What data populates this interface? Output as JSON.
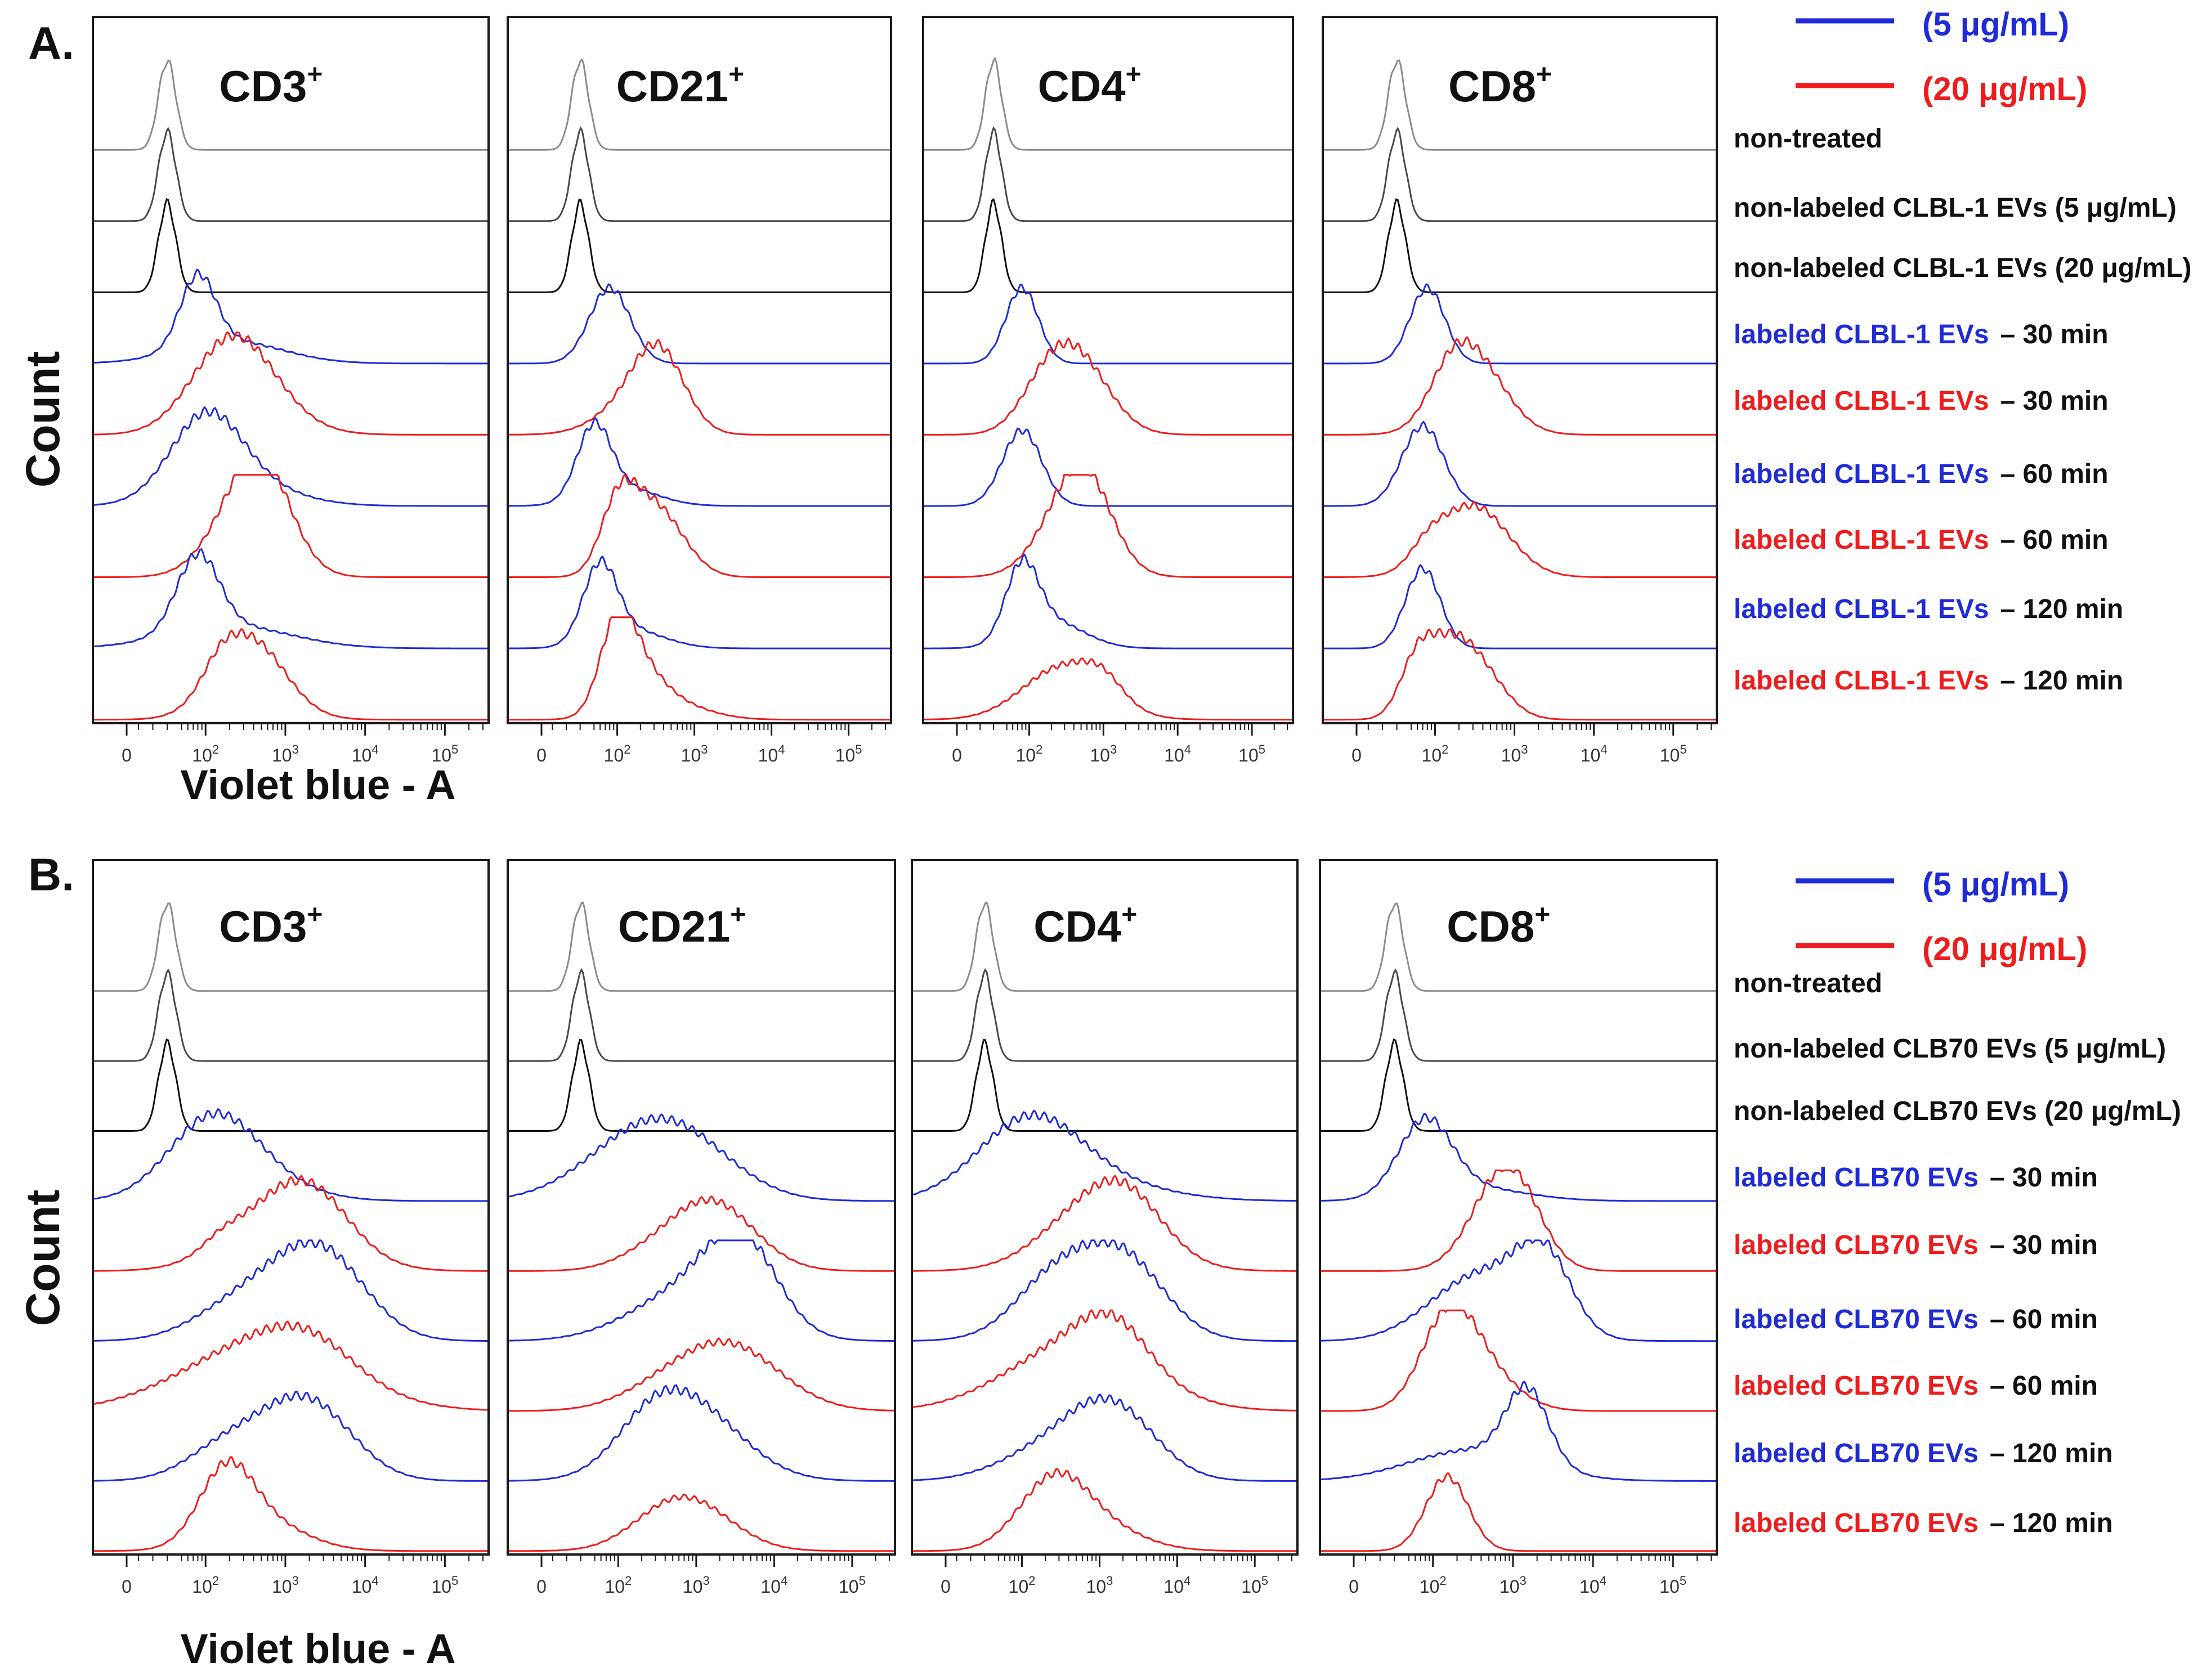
{
  "figure": {
    "panels": [
      {
        "letter": "A.",
        "y_label": "Count",
        "x_label": "Violet blue - A",
        "legend": [
          {
            "label": "(5 μg/mL)",
            "color": "#1f2bd6"
          },
          {
            "label": "(20 μg/mL)",
            "color": "#ee1c1c"
          }
        ],
        "rows": [
          {
            "name": "non-treated",
            "prefix": "",
            "suffix": "non-treated",
            "color": "#111111",
            "trace": "#8c8c8c"
          },
          {
            "name": "non-labeled-5",
            "prefix": "",
            "suffix": "non-labeled CLBL-1 EVs (5 μg/mL)",
            "color": "#111111",
            "trace": "#4a4a4a"
          },
          {
            "name": "non-labeled-20",
            "prefix": "",
            "suffix": "non-labeled CLBL-1 EVs (20 μg/mL)",
            "color": "#111111",
            "trace": "#111111"
          },
          {
            "name": "labeled-5-30",
            "prefix": "labeled CLBL-1 EVs",
            "suffix": "– 30 min",
            "color": "#1f2bd6",
            "trace": "#1f2bd6"
          },
          {
            "name": "labeled-20-30",
            "prefix": "labeled CLBL-1 EVs",
            "suffix": "– 30 min",
            "color": "#ee1c1c",
            "trace": "#ee1c1c"
          },
          {
            "name": "labeled-5-60",
            "prefix": "labeled CLBL-1 EVs",
            "suffix": "– 60 min",
            "color": "#1f2bd6",
            "trace": "#1f2bd6"
          },
          {
            "name": "labeled-20-60",
            "prefix": "labeled CLBL-1 EVs",
            "suffix": "– 60 min",
            "color": "#ee1c1c",
            "trace": "#ee1c1c"
          },
          {
            "name": "labeled-5-120",
            "prefix": "labeled CLBL-1 EVs",
            "suffix": "– 120 min",
            "color": "#1f2bd6",
            "trace": "#1f2bd6"
          },
          {
            "name": "labeled-20-120",
            "prefix": "labeled CLBL-1 EVs",
            "suffix": "– 120 min",
            "color": "#ee1c1c",
            "trace": "#ee1c1c"
          }
        ]
      },
      {
        "letter": "B.",
        "y_label": "Count",
        "x_label": "Violet blue - A",
        "legend": [
          {
            "label": "(5 μg/mL)",
            "color": "#1f2bd6"
          },
          {
            "label": "(20 μg/mL)",
            "color": "#ee1c1c"
          }
        ],
        "rows": [
          {
            "name": "non-treated",
            "prefix": "",
            "suffix": "non-treated",
            "color": "#111111",
            "trace": "#8c8c8c"
          },
          {
            "name": "non-labeled-5",
            "prefix": "",
            "suffix": "non-labeled CLB70 EVs (5 μg/mL)",
            "color": "#111111",
            "trace": "#4a4a4a"
          },
          {
            "name": "non-labeled-20",
            "prefix": "",
            "suffix": "non-labeled CLB70 EVs (20 μg/mL)",
            "color": "#111111",
            "trace": "#111111"
          },
          {
            "name": "labeled-5-30",
            "prefix": "labeled CLB70 EVs",
            "suffix": "– 30 min",
            "color": "#1f2bd6",
            "trace": "#1f2bd6"
          },
          {
            "name": "labeled-20-30",
            "prefix": "labeled CLB70 EVs",
            "suffix": "– 30 min",
            "color": "#ee1c1c",
            "trace": "#ee1c1c"
          },
          {
            "name": "labeled-5-60",
            "prefix": "labeled CLB70 EVs",
            "suffix": "– 60 min",
            "color": "#1f2bd6",
            "trace": "#1f2bd6"
          },
          {
            "name": "labeled-20-60",
            "prefix": "labeled CLB70 EVs",
            "suffix": "– 60 min",
            "color": "#ee1c1c",
            "trace": "#ee1c1c"
          },
          {
            "name": "labeled-5-120",
            "prefix": "labeled CLB70 EVs",
            "suffix": "– 120 min",
            "color": "#1f2bd6",
            "trace": "#1f2bd6"
          },
          {
            "name": "labeled-20-120",
            "prefix": "labeled CLB70 EVs",
            "suffix": "– 120 min",
            "color": "#ee1c1c",
            "trace": "#ee1c1c"
          }
        ]
      }
    ]
  },
  "chart_data": [
    {
      "type": "line",
      "panel": "A.",
      "plot_title": "CD3+",
      "xlabel": "Violet blue - A",
      "ylabel": "Count",
      "x_scale": "biexponential",
      "x_ticks": [
        "0",
        "10^2",
        "10^3",
        "10^4",
        "10^5"
      ],
      "series_peaks": [
        [
          {
            "x": 40,
            "h": 1.0,
            "w": 0.05
          }
        ],
        [
          {
            "x": 40,
            "h": 1.0,
            "w": 0.05
          }
        ],
        [
          {
            "x": 40,
            "h": 1.0,
            "w": 0.05
          }
        ],
        [
          {
            "x": 80,
            "h": 0.8,
            "w": 0.1
          },
          {
            "x": 200,
            "h": 0.25,
            "w": 0.3
          }
        ],
        [
          {
            "x": 200,
            "h": 0.85,
            "w": 0.22
          },
          {
            "x": 400,
            "h": 0.3,
            "w": 0.25
          }
        ],
        [
          {
            "x": 100,
            "h": 0.85,
            "w": 0.2
          },
          {
            "x": 250,
            "h": 0.25,
            "w": 0.3
          }
        ],
        [
          {
            "x": 350,
            "h": 0.9,
            "w": 0.2
          },
          {
            "x": 550,
            "h": 0.55,
            "w": 0.15
          }
        ],
        [
          {
            "x": 80,
            "h": 0.85,
            "w": 0.12
          },
          {
            "x": 200,
            "h": 0.25,
            "w": 0.35
          }
        ],
        [
          {
            "x": 350,
            "h": 0.9,
            "w": 0.2
          },
          {
            "x": 150,
            "h": 0.2,
            "w": 0.1
          }
        ]
      ]
    },
    {
      "type": "line",
      "panel": "A.",
      "plot_title": "CD21+",
      "xlabel": "Violet blue - A",
      "ylabel": "Count",
      "x_scale": "biexponential",
      "x_ticks": [
        "0",
        "10^2",
        "10^3",
        "10^4",
        "10^5"
      ],
      "series_peaks": [
        [
          {
            "x": 40,
            "h": 1.0,
            "w": 0.05
          }
        ],
        [
          {
            "x": 40,
            "h": 1.0,
            "w": 0.05
          }
        ],
        [
          {
            "x": 40,
            "h": 1.0,
            "w": 0.05
          }
        ],
        [
          {
            "x": 80,
            "h": 0.85,
            "w": 0.12
          }
        ],
        [
          {
            "x": 350,
            "h": 0.8,
            "w": 0.15
          },
          {
            "x": 150,
            "h": 0.3,
            "w": 0.2
          }
        ],
        [
          {
            "x": 50,
            "h": 0.8,
            "w": 0.1
          },
          {
            "x": 120,
            "h": 0.2,
            "w": 0.2
          }
        ],
        [
          {
            "x": 100,
            "h": 0.6,
            "w": 0.1
          },
          {
            "x": 200,
            "h": 0.55,
            "w": 0.15
          },
          {
            "x": 450,
            "h": 0.4,
            "w": 0.15
          }
        ],
        [
          {
            "x": 60,
            "h": 0.85,
            "w": 0.1
          },
          {
            "x": 150,
            "h": 0.2,
            "w": 0.2
          }
        ],
        [
          {
            "x": 100,
            "h": 0.85,
            "w": 0.1
          },
          {
            "x": 180,
            "h": 0.5,
            "w": 0.15
          },
          {
            "x": 600,
            "h": 0.15,
            "w": 0.2
          }
        ]
      ]
    },
    {
      "type": "line",
      "panel": "A.",
      "plot_title": "CD4+",
      "xlabel": "Violet blue - A",
      "ylabel": "Count",
      "x_scale": "biexponential",
      "x_ticks": [
        "0",
        "10^2",
        "10^3",
        "10^4",
        "10^5"
      ],
      "series_peaks": [
        [
          {
            "x": 40,
            "h": 1.0,
            "w": 0.05
          }
        ],
        [
          {
            "x": 40,
            "h": 1.0,
            "w": 0.05
          }
        ],
        [
          {
            "x": 40,
            "h": 1.0,
            "w": 0.05
          }
        ],
        [
          {
            "x": 80,
            "h": 0.85,
            "w": 0.1
          }
        ],
        [
          {
            "x": 400,
            "h": 0.9,
            "w": 0.2
          },
          {
            "x": 150,
            "h": 0.25,
            "w": 0.15
          }
        ],
        [
          {
            "x": 80,
            "h": 0.85,
            "w": 0.12
          }
        ],
        [
          {
            "x": 400,
            "h": 0.85,
            "w": 0.2
          },
          {
            "x": 600,
            "h": 0.45,
            "w": 0.15
          }
        ],
        [
          {
            "x": 80,
            "h": 0.8,
            "w": 0.1
          },
          {
            "x": 200,
            "h": 0.3,
            "w": 0.2
          }
        ],
        [
          {
            "x": 300,
            "h": 0.6,
            "w": 0.25
          },
          {
            "x": 1000,
            "h": 0.2,
            "w": 0.12
          }
        ]
      ]
    },
    {
      "type": "line",
      "panel": "A.",
      "plot_title": "CD8+",
      "xlabel": "Violet blue - A",
      "ylabel": "Count",
      "x_scale": "biexponential",
      "x_ticks": [
        "0",
        "10^2",
        "10^3",
        "10^4",
        "10^5"
      ],
      "series_peaks": [
        [
          {
            "x": 40,
            "h": 1.0,
            "w": 0.05
          }
        ],
        [
          {
            "x": 40,
            "h": 1.0,
            "w": 0.05
          }
        ],
        [
          {
            "x": 40,
            "h": 1.0,
            "w": 0.05
          }
        ],
        [
          {
            "x": 80,
            "h": 0.85,
            "w": 0.1
          }
        ],
        [
          {
            "x": 300,
            "h": 0.85,
            "w": 0.18
          },
          {
            "x": 150,
            "h": 0.3,
            "w": 0.12
          }
        ],
        [
          {
            "x": 70,
            "h": 0.9,
            "w": 0.12
          }
        ],
        [
          {
            "x": 300,
            "h": 0.8,
            "w": 0.2
          },
          {
            "x": 80,
            "h": 0.2,
            "w": 0.1
          }
        ],
        [
          {
            "x": 70,
            "h": 0.9,
            "w": 0.1
          }
        ],
        [
          {
            "x": 60,
            "h": 0.65,
            "w": 0.1
          },
          {
            "x": 150,
            "h": 0.55,
            "w": 0.12
          },
          {
            "x": 350,
            "h": 0.55,
            "w": 0.15
          }
        ]
      ]
    },
    {
      "type": "line",
      "panel": "B.",
      "plot_title": "CD3+",
      "xlabel": "Violet blue - A",
      "ylabel": "Count",
      "x_scale": "biexponential",
      "x_ticks": [
        "0",
        "10^2",
        "10^3",
        "10^4",
        "10^5"
      ],
      "series_peaks": [
        [
          {
            "x": 40,
            "h": 1.0,
            "w": 0.05
          }
        ],
        [
          {
            "x": 40,
            "h": 1.0,
            "w": 0.05
          }
        ],
        [
          {
            "x": 40,
            "h": 1.0,
            "w": 0.05
          }
        ],
        [
          {
            "x": 120,
            "h": 0.85,
            "w": 0.25
          },
          {
            "x": 400,
            "h": 0.2,
            "w": 0.3
          }
        ],
        [
          {
            "x": 1000,
            "h": 0.8,
            "w": 0.3
          },
          {
            "x": 2500,
            "h": 0.3,
            "w": 0.2
          },
          {
            "x": 150,
            "h": 0.1,
            "w": 0.1
          }
        ],
        [
          {
            "x": 3000,
            "h": 0.8,
            "w": 0.25
          },
          {
            "x": 800,
            "h": 0.4,
            "w": 0.3
          },
          {
            "x": 200,
            "h": 0.2,
            "w": 0.25
          }
        ],
        [
          {
            "x": 500,
            "h": 0.75,
            "w": 0.45
          },
          {
            "x": 2000,
            "h": 0.3,
            "w": 0.25
          }
        ],
        [
          {
            "x": 2000,
            "h": 0.75,
            "w": 0.25
          },
          {
            "x": 500,
            "h": 0.3,
            "w": 0.3
          },
          {
            "x": 150,
            "h": 0.2,
            "w": 0.2
          }
        ],
        [
          {
            "x": 180,
            "h": 0.75,
            "w": 0.15
          },
          {
            "x": 450,
            "h": 0.35,
            "w": 0.25
          }
        ]
      ]
    },
    {
      "type": "line",
      "panel": "B.",
      "plot_title": "CD21+",
      "xlabel": "Violet blue - A",
      "ylabel": "Count",
      "x_scale": "biexponential",
      "x_ticks": [
        "0",
        "10^2",
        "10^3",
        "10^4",
        "10^5"
      ],
      "series_peaks": [
        [
          {
            "x": 40,
            "h": 1.0,
            "w": 0.05
          }
        ],
        [
          {
            "x": 40,
            "h": 1.0,
            "w": 0.05
          }
        ],
        [
          {
            "x": 40,
            "h": 1.0,
            "w": 0.05
          }
        ],
        [
          {
            "x": 250,
            "h": 0.8,
            "w": 0.35
          },
          {
            "x": 1000,
            "h": 0.2,
            "w": 0.3
          }
        ],
        [
          {
            "x": 1500,
            "h": 0.8,
            "w": 0.25
          },
          {
            "x": 200,
            "h": 0.1,
            "w": 0.2
          }
        ],
        [
          {
            "x": 4000,
            "h": 0.8,
            "w": 0.2
          },
          {
            "x": 1500,
            "h": 0.5,
            "w": 0.3
          },
          {
            "x": 300,
            "h": 0.2,
            "w": 0.3
          }
        ],
        [
          {
            "x": 2500,
            "h": 0.75,
            "w": 0.3
          },
          {
            "x": 300,
            "h": 0.15,
            "w": 0.25
          }
        ],
        [
          {
            "x": 800,
            "h": 0.85,
            "w": 0.3
          },
          {
            "x": 250,
            "h": 0.3,
            "w": 0.2
          }
        ],
        [
          {
            "x": 800,
            "h": 0.55,
            "w": 0.25
          },
          {
            "x": 300,
            "h": 0.1,
            "w": 0.2
          }
        ]
      ]
    },
    {
      "type": "line",
      "panel": "B.",
      "plot_title": "CD4+",
      "xlabel": "Violet blue - A",
      "ylabel": "Count",
      "x_scale": "biexponential",
      "x_ticks": [
        "0",
        "10^2",
        "10^3",
        "10^4",
        "10^5"
      ],
      "series_peaks": [
        [
          {
            "x": 40,
            "h": 1.0,
            "w": 0.05
          }
        ],
        [
          {
            "x": 40,
            "h": 1.0,
            "w": 0.05
          }
        ],
        [
          {
            "x": 40,
            "h": 1.0,
            "w": 0.05
          }
        ],
        [
          {
            "x": 120,
            "h": 0.85,
            "w": 0.3
          },
          {
            "x": 800,
            "h": 0.2,
            "w": 0.4
          }
        ],
        [
          {
            "x": 1000,
            "h": 0.8,
            "w": 0.3
          },
          {
            "x": 2500,
            "h": 0.3,
            "w": 0.2
          }
        ],
        [
          {
            "x": 2000,
            "h": 0.75,
            "w": 0.25
          },
          {
            "x": 500,
            "h": 0.45,
            "w": 0.3
          },
          {
            "x": 200,
            "h": 0.3,
            "w": 0.2
          }
        ],
        [
          {
            "x": 500,
            "h": 0.75,
            "w": 0.4
          },
          {
            "x": 1500,
            "h": 0.45,
            "w": 0.2
          }
        ],
        [
          {
            "x": 1500,
            "h": 0.75,
            "w": 0.25
          },
          {
            "x": 250,
            "h": 0.35,
            "w": 0.3
          }
        ],
        [
          {
            "x": 250,
            "h": 0.75,
            "w": 0.2
          },
          {
            "x": 1000,
            "h": 0.25,
            "w": 0.25
          }
        ]
      ]
    },
    {
      "type": "line",
      "panel": "B.",
      "plot_title": "CD8+",
      "xlabel": "Violet blue - A",
      "ylabel": "Count",
      "x_scale": "biexponential",
      "x_ticks": [
        "0",
        "10^2",
        "10^3",
        "10^4",
        "10^5"
      ],
      "series_peaks": [
        [
          {
            "x": 40,
            "h": 1.0,
            "w": 0.05
          }
        ],
        [
          {
            "x": 40,
            "h": 1.0,
            "w": 0.05
          }
        ],
        [
          {
            "x": 40,
            "h": 1.0,
            "w": 0.05
          }
        ],
        [
          {
            "x": 80,
            "h": 0.85,
            "w": 0.15
          },
          {
            "x": 300,
            "h": 0.15,
            "w": 0.3
          }
        ],
        [
          {
            "x": 700,
            "h": 0.85,
            "w": 0.18
          },
          {
            "x": 1100,
            "h": 0.4,
            "w": 0.15
          }
        ],
        [
          {
            "x": 2500,
            "h": 0.75,
            "w": 0.15
          },
          {
            "x": 800,
            "h": 0.5,
            "w": 0.25
          },
          {
            "x": 200,
            "h": 0.4,
            "w": 0.25
          }
        ],
        [
          {
            "x": 150,
            "h": 0.85,
            "w": 0.15
          },
          {
            "x": 350,
            "h": 0.5,
            "w": 0.2
          }
        ],
        [
          {
            "x": 1500,
            "h": 0.85,
            "w": 0.12
          },
          {
            "x": 300,
            "h": 0.35,
            "w": 0.35
          }
        ],
        [
          {
            "x": 150,
            "h": 0.85,
            "w": 0.12
          }
        ]
      ]
    }
  ]
}
